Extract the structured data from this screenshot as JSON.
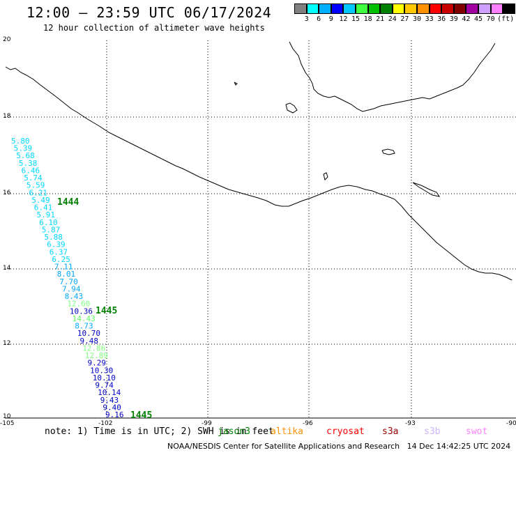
{
  "header": {
    "title": "12:00 — 23:59 UTC 06/17/2024",
    "subtitle": "12 hour collection of altimeter wave heights"
  },
  "legend": {
    "colors": [
      "#808080",
      "#00ffff",
      "#00b0ff",
      "#0000ff",
      "#00c8ff",
      "#40ff40",
      "#00c000",
      "#008000",
      "#ffff00",
      "#ffc800",
      "#ff9000",
      "#ff0000",
      "#c80000",
      "#800000",
      "#a000a0",
      "#d0a0ff",
      "#ff80ff",
      "#000000"
    ],
    "labels": [
      "3",
      "6",
      "9",
      "12",
      "15",
      "18",
      "21",
      "24",
      "27",
      "30",
      "33",
      "36",
      "39",
      "42",
      "45",
      "70",
      "(ft)"
    ]
  },
  "axes": {
    "y_ticks": [
      "20",
      "18",
      "16",
      "14",
      "12",
      "10"
    ],
    "x_ticks": [
      "-105",
      "-102",
      "-99",
      "-96",
      "-93",
      "-90"
    ]
  },
  "track_values": [
    {
      "v": "5.80",
      "c": "#00d8ff"
    },
    {
      "v": "5.39",
      "c": "#00d8ff"
    },
    {
      "v": "5.68",
      "c": "#00d8ff"
    },
    {
      "v": "5.38",
      "c": "#00d8ff"
    },
    {
      "v": "6.46",
      "c": "#00d8ff"
    },
    {
      "v": "5.74",
      "c": "#00d8ff"
    },
    {
      "v": "5.59",
      "c": "#00d8ff"
    },
    {
      "v": "6.21",
      "c": "#00d8ff"
    },
    {
      "v": "5.49",
      "c": "#00d8ff"
    },
    {
      "v": "6.41",
      "c": "#00d8ff"
    },
    {
      "v": "5.91",
      "c": "#00d8ff"
    },
    {
      "v": "6.10",
      "c": "#00d8ff"
    },
    {
      "v": "5.87",
      "c": "#00d8ff"
    },
    {
      "v": "5.88",
      "c": "#00d8ff"
    },
    {
      "v": "6.39",
      "c": "#00d8ff"
    },
    {
      "v": "6.37",
      "c": "#00d8ff"
    },
    {
      "v": "6.25",
      "c": "#00d8ff"
    },
    {
      "v": "7.11",
      "c": "#00a8ff"
    },
    {
      "v": "8.01",
      "c": "#00a8ff"
    },
    {
      "v": "7.70",
      "c": "#00a8ff"
    },
    {
      "v": "7.94",
      "c": "#00a8ff"
    },
    {
      "v": "8.43",
      "c": "#00a8ff"
    },
    {
      "v": "12.60",
      "c": "#80ff80"
    },
    {
      "v": "10.36",
      "c": "#0000c8"
    },
    {
      "v": "14.43",
      "c": "#60ff60"
    },
    {
      "v": "8.73",
      "c": "#00a8ff"
    },
    {
      "v": "10.70",
      "c": "#0000c8"
    },
    {
      "v": "9.48",
      "c": "#0000c8"
    },
    {
      "v": "12.86",
      "c": "#80ff80"
    },
    {
      "v": "12.89",
      "c": "#80ff80"
    },
    {
      "v": "9.29",
      "c": "#0000c8"
    },
    {
      "v": "10.30",
      "c": "#0000c8"
    },
    {
      "v": "10.10",
      "c": "#0000c8"
    },
    {
      "v": "9.74",
      "c": "#0000c8"
    },
    {
      "v": "10.14",
      "c": "#0000c8"
    },
    {
      "v": "9.43",
      "c": "#0000c8"
    },
    {
      "v": "9.40",
      "c": "#0000c8"
    },
    {
      "v": "9.16",
      "c": "#0000c8"
    }
  ],
  "time_labels": [
    "1444",
    "1445",
    "1445"
  ],
  "time_label_color": "#008000",
  "note": {
    "text": "note: 1) Time is in UTC; 2) SWH is in feet",
    "satellites": [
      {
        "name": "jason3",
        "color": "#008000"
      },
      {
        "name": "altika",
        "color": "#ff9000"
      },
      {
        "name": "cryosat",
        "color": "#ff0000"
      },
      {
        "name": "s3a",
        "color": "#a00000"
      },
      {
        "name": "s3b",
        "color": "#c8b4ff"
      },
      {
        "name": "swot",
        "color": "#ff80ff"
      }
    ]
  },
  "footer": "NOAA/NESDIS Center for Satellite Applications and Research   14 Dec 14:42:25 UTC 2024"
}
